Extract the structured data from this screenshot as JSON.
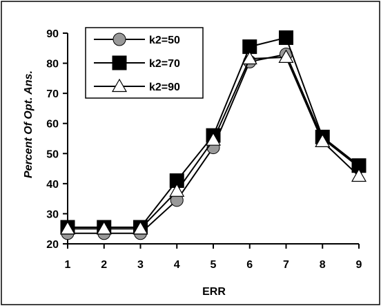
{
  "chart_data": {
    "type": "line",
    "title": "",
    "xlabel": "ERR",
    "ylabel": "Percent Of Opt. Ans.",
    "x": [
      1,
      2,
      3,
      4,
      5,
      6,
      7,
      8,
      9
    ],
    "xlim": [
      1,
      9
    ],
    "ylim": [
      20,
      90
    ],
    "yticks": [
      20,
      30,
      40,
      50,
      60,
      70,
      80,
      90
    ],
    "grid": false,
    "legend_position": "top-left",
    "series": [
      {
        "name": "k2=50",
        "marker": "circle",
        "marker_fill": "#999999",
        "values": [
          23.5,
          23.5,
          23.5,
          34.5,
          52,
          80.5,
          83,
          55,
          45.5
        ]
      },
      {
        "name": "k2=70",
        "marker": "square",
        "marker_fill": "#000000",
        "values": [
          25.5,
          25.5,
          25.5,
          41,
          56,
          85.5,
          88.5,
          55.5,
          46
        ]
      },
      {
        "name": "k2=90",
        "marker": "triangle",
        "marker_fill": "#ffffff",
        "values": [
          25,
          25,
          25,
          37.5,
          54.5,
          81.5,
          82,
          54,
          42.5
        ]
      }
    ]
  }
}
